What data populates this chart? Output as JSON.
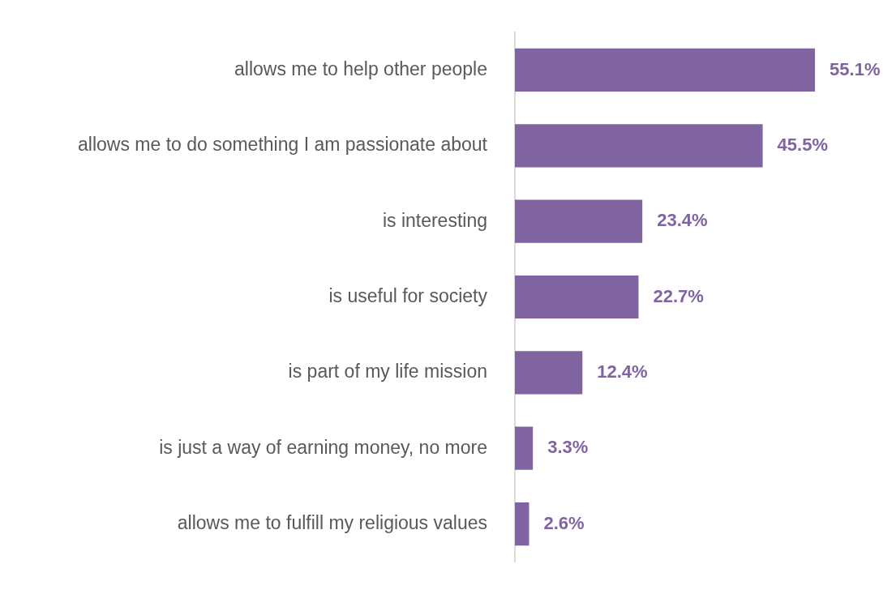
{
  "chart_data": {
    "type": "bar",
    "orientation": "horizontal",
    "categories": [
      "allows me to help other people",
      "allows me to do something I am passionate about",
      "is interesting",
      "is useful for society",
      "is part of my life mission",
      "is just a way of earning money, no more",
      "allows me to fulfill my religious values"
    ],
    "values": [
      55.1,
      45.5,
      23.4,
      22.7,
      12.4,
      3.3,
      2.6
    ],
    "value_labels": [
      "55.1%",
      "45.5%",
      "23.4%",
      "22.7%",
      "12.4%",
      "3.3%",
      "2.6%"
    ],
    "color": "#8064a2",
    "tick_labels": "y"
  }
}
